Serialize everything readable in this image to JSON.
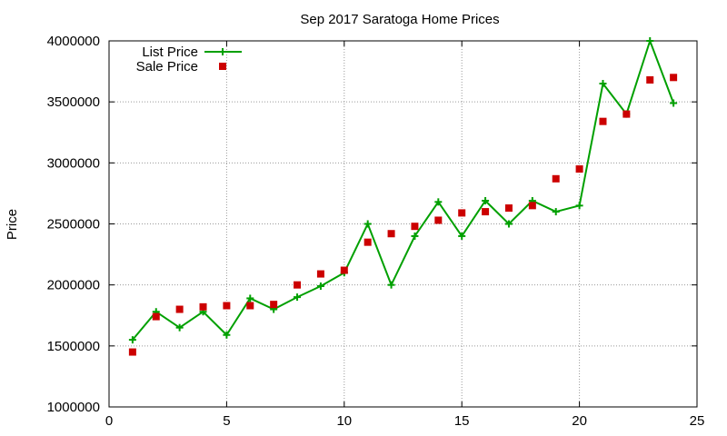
{
  "chart_data": {
    "type": "line",
    "title": "Sep 2017 Saratoga Home Prices",
    "xlabel": "",
    "ylabel": "Price",
    "xlim": [
      0,
      25
    ],
    "ylim": [
      1000000,
      4000000
    ],
    "xticks": [
      0,
      5,
      10,
      15,
      20,
      25
    ],
    "yticks": [
      1000000,
      1500000,
      2000000,
      2500000,
      3000000,
      3500000,
      4000000
    ],
    "grid": true,
    "legend": "top-left",
    "x": [
      1,
      2,
      3,
      4,
      5,
      6,
      7,
      8,
      9,
      10,
      11,
      12,
      13,
      14,
      15,
      16,
      17,
      18,
      19,
      20,
      21,
      22,
      23,
      24
    ],
    "series": [
      {
        "name": "List Price",
        "style": "line-plus",
        "color": "#00a000",
        "values": [
          1550000,
          1780000,
          1650000,
          1780000,
          1590000,
          1890000,
          1800000,
          1900000,
          1990000,
          2100000,
          2500000,
          2000000,
          2400000,
          2680000,
          2400000,
          2690000,
          2500000,
          2690000,
          2600000,
          2650000,
          3650000,
          3400000,
          4000000,
          3490000
        ]
      },
      {
        "name": "Sale Price",
        "style": "square-marker",
        "color": "#cc0000",
        "values": [
          1450000,
          1740000,
          1800000,
          1820000,
          1830000,
          1830000,
          1840000,
          2000000,
          2090000,
          2120000,
          2350000,
          2420000,
          2480000,
          2530000,
          2590000,
          2600000,
          2630000,
          2650000,
          2870000,
          2950000,
          3340000,
          3400000,
          3680000,
          3700000
        ]
      }
    ]
  }
}
